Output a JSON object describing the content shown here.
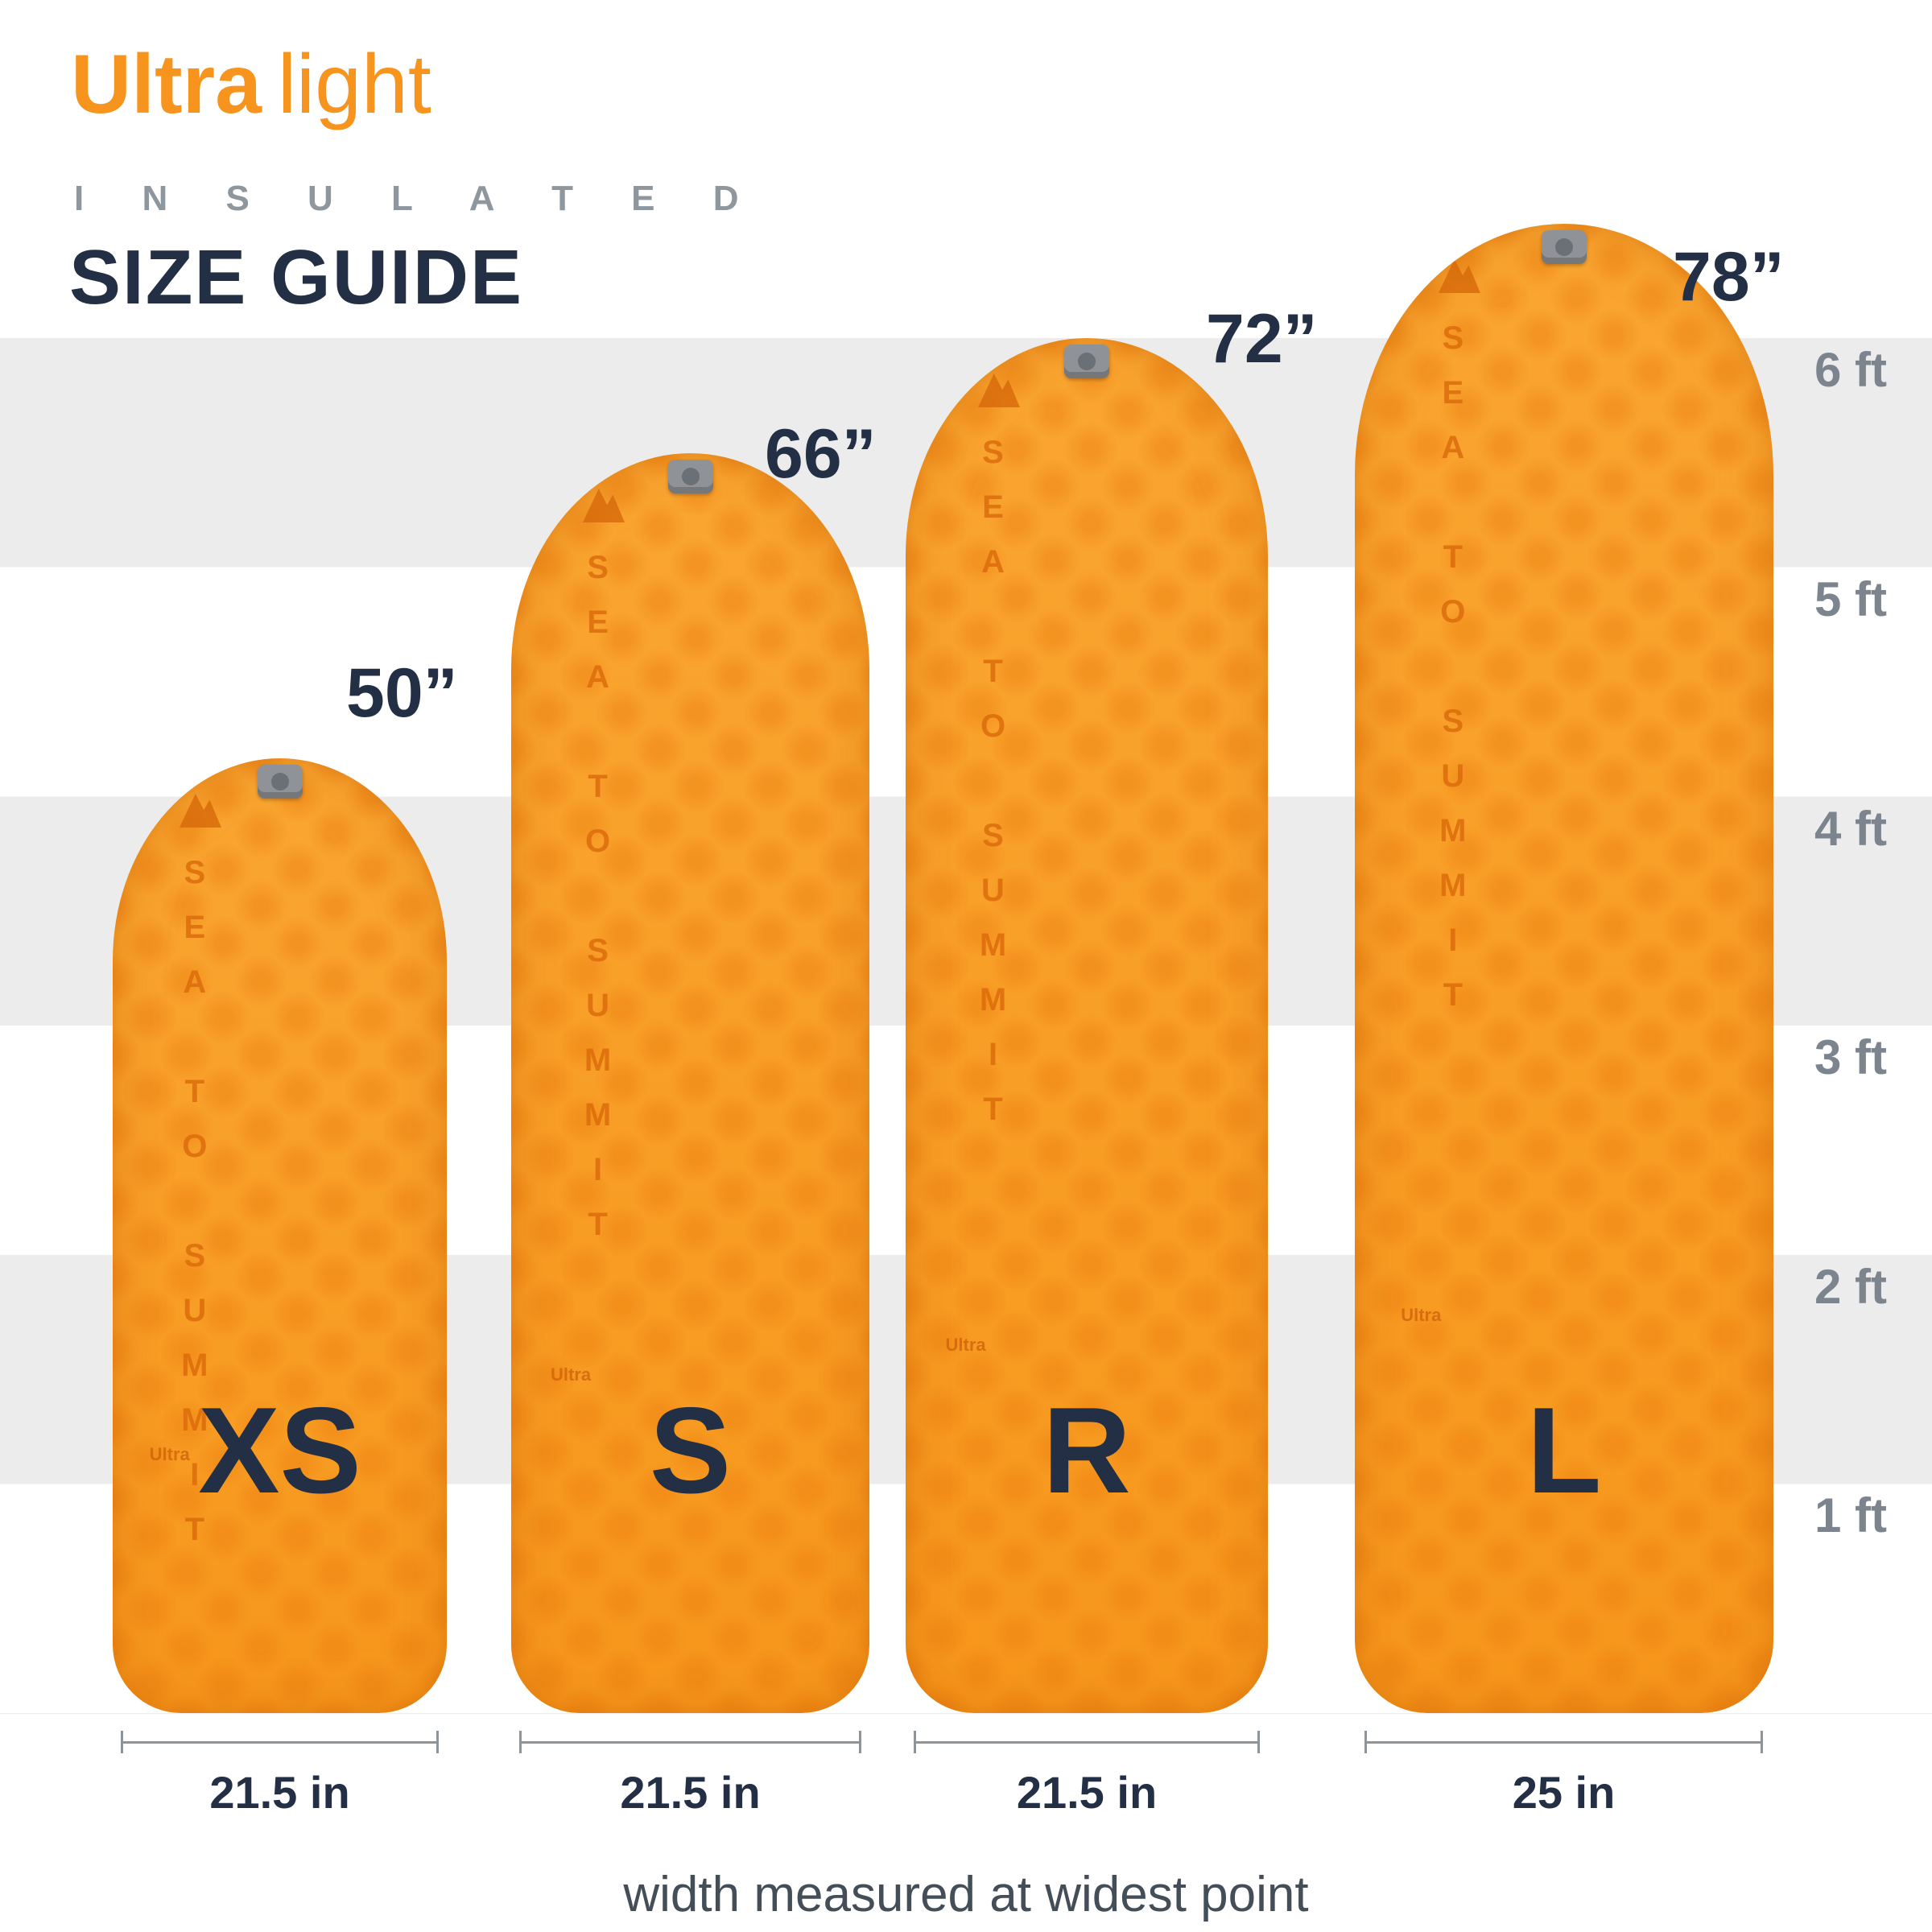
{
  "title": {
    "brand_bold": "Ultra",
    "brand_light": "light",
    "subtitle": "I N S U L A T E D",
    "heading": "SIZE GUIDE"
  },
  "pads": [
    {
      "size_label": "XS",
      "length_label": "50”",
      "width_label": "21.5 in",
      "brand_text": "SEA TO SUMMIT",
      "print": "Ultra"
    },
    {
      "size_label": "S",
      "length_label": "66”",
      "width_label": "21.5 in",
      "brand_text": "SEA TO SUMMIT",
      "print": "Ultra"
    },
    {
      "size_label": "R",
      "length_label": "72”",
      "width_label": "21.5 in",
      "brand_text": "SEA TO SUMMIT",
      "print": "Ultra"
    },
    {
      "size_label": "L",
      "length_label": "78”",
      "width_label": "25 in",
      "brand_text": "SEA TO SUMMIT",
      "print": "Ultra"
    }
  ],
  "ruler": {
    "labels": [
      "6 ft",
      "5 ft",
      "4 ft",
      "3 ft",
      "2 ft",
      "1 ft"
    ]
  },
  "footer": {
    "caption": "width measured at widest point"
  },
  "colors": {
    "pad_orange": "#F8991D",
    "brand_orange": "#F7941E",
    "navy": "#232F44",
    "stripe_gray": "#ECECEC",
    "ruler_gray": "#7C858D",
    "measure_gray": "#8C959C"
  }
}
